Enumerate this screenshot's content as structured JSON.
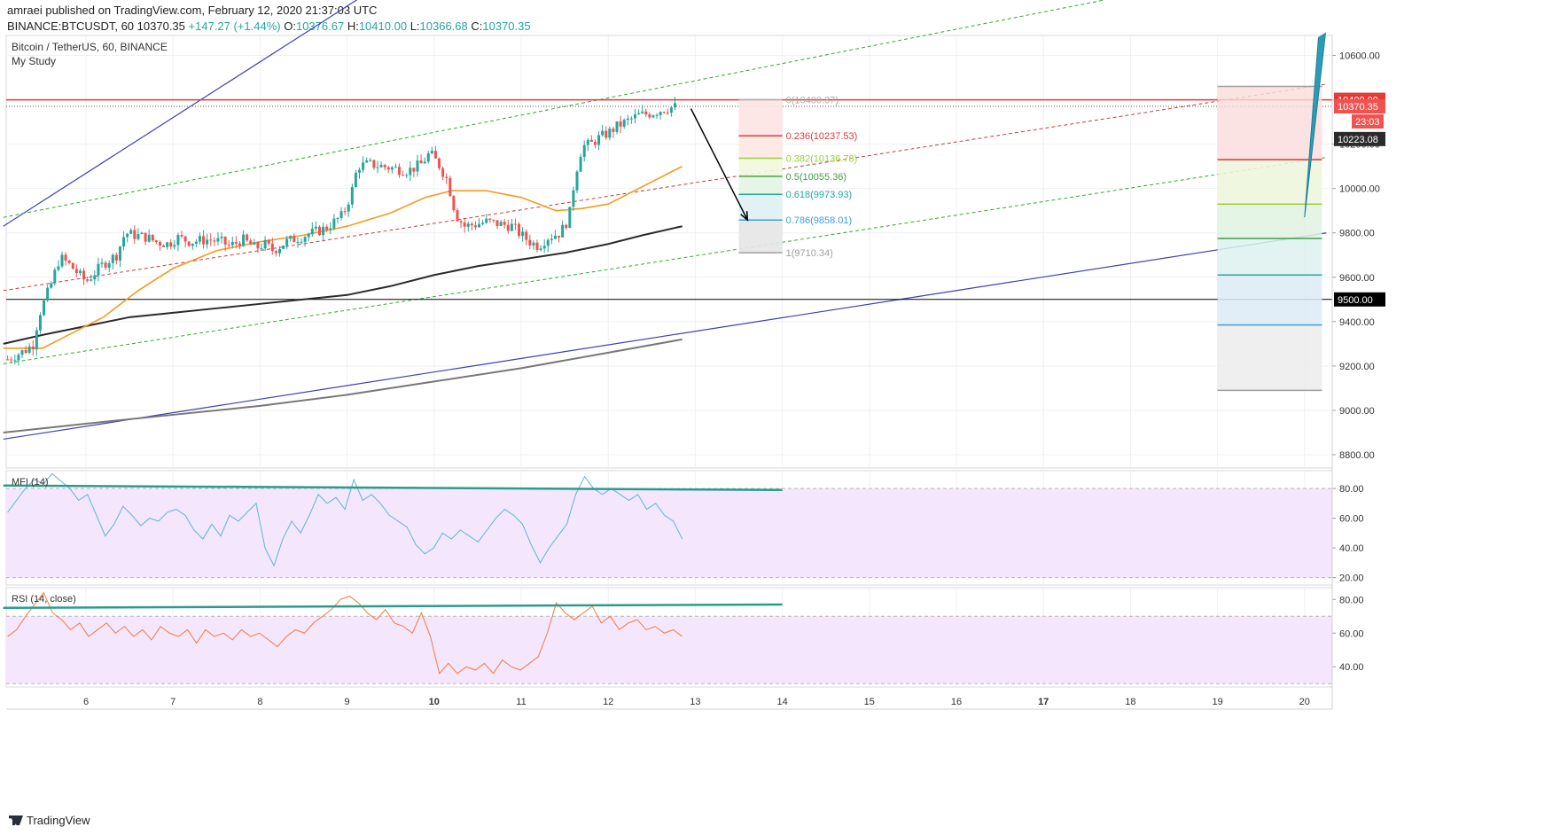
{
  "header": {
    "published": "amraei published on TradingView.com, February 12, 2020 21:37:03 UTC",
    "ticker": "BINANCE:BTCUSDT, 60",
    "last": "10370.35",
    "change": "+147.27 (+1.44%)",
    "o_label": "O:",
    "o": "10376.67",
    "h_label": "H:",
    "h": "10410.00",
    "l_label": "L:",
    "l": "10366.68",
    "c_label": "C:",
    "c": "10370.35"
  },
  "legend": {
    "symbol": "Bitcoin / TetherUS, 60, BINANCE",
    "study": "My Study"
  },
  "brand": "TradingView",
  "colors": {
    "up": "#26a69a",
    "down": "#ef5350",
    "ma_orange": "#f59b1e",
    "ma_black": "#2b2b2b",
    "ma_gray": "#787878",
    "channel_blue": "#3f3fb5",
    "dash_green": "#33a833",
    "dash_red": "#c83c3c",
    "h_red": "#e53935",
    "mfi": "#5bb6d8",
    "rsi": "#f27a3c",
    "trend_teal": "#2b9c8a",
    "band": "#f4e6fc"
  },
  "chart_data": [
    {
      "type": "candlestick",
      "title": "Bitcoin / TetherUS, 60, BINANCE",
      "subtitle": "My Study",
      "x_ticks": [
        "6",
        "7",
        "8",
        "9",
        "10",
        "11",
        "12",
        "13",
        "14",
        "15",
        "16",
        "17",
        "18",
        "19",
        "20"
      ],
      "y_ticks": [
        "10600.00",
        "10400.00",
        "10200.00",
        "10000.00",
        "9800.00",
        "9600.00",
        "9400.00",
        "9200.00",
        "9000.00",
        "8800.00"
      ],
      "ylim": [
        8740,
        10690
      ],
      "price_labels": [
        {
          "text": "10400.00",
          "value": 10400,
          "bg": "#e53935",
          "fg": "#ffffff"
        },
        {
          "text": "10370.35",
          "value": 10370.35,
          "bg": "#ef5350",
          "fg": "#ffffff"
        },
        {
          "text": "23:03",
          "value": 10300,
          "bg": "#ef5350",
          "fg": "#ffffff"
        },
        {
          "text": "10223.08",
          "value": 10223.08,
          "bg": "#2b2b2b",
          "fg": "#ffffff"
        },
        {
          "text": "9500.00",
          "value": 9500,
          "bg": "#000000",
          "fg": "#ffffff"
        }
      ],
      "close_path": [
        [
          5.1,
          9230
        ],
        [
          5.3,
          9270
        ],
        [
          5.4,
          9300
        ],
        [
          5.45,
          9420
        ],
        [
          5.5,
          9470
        ],
        [
          5.6,
          9570
        ],
        [
          5.7,
          9690
        ],
        [
          5.8,
          9660
        ],
        [
          5.9,
          9620
        ],
        [
          6.0,
          9580
        ],
        [
          6.1,
          9620
        ],
        [
          6.2,
          9660
        ],
        [
          6.35,
          9700
        ],
        [
          6.45,
          9800
        ],
        [
          6.55,
          9790
        ],
        [
          6.7,
          9780
        ],
        [
          6.8,
          9760
        ],
        [
          6.95,
          9750
        ],
        [
          7.05,
          9780
        ],
        [
          7.2,
          9760
        ],
        [
          7.4,
          9770
        ],
        [
          7.55,
          9760
        ],
        [
          7.65,
          9740
        ],
        [
          7.8,
          9770
        ],
        [
          7.95,
          9730
        ],
        [
          8.05,
          9750
        ],
        [
          8.15,
          9720
        ],
        [
          8.3,
          9760
        ],
        [
          8.45,
          9780
        ],
        [
          8.6,
          9800
        ],
        [
          8.75,
          9820
        ],
        [
          8.85,
          9850
        ],
        [
          8.95,
          9880
        ],
        [
          9.05,
          9980
        ],
        [
          9.12,
          10100
        ],
        [
          9.25,
          10110
        ],
        [
          9.4,
          10100
        ],
        [
          9.55,
          10090
        ],
        [
          9.7,
          10080
        ],
        [
          9.85,
          10110
        ],
        [
          9.95,
          10160
        ],
        [
          10.05,
          10110
        ],
        [
          10.15,
          10040
        ],
        [
          10.25,
          9880
        ],
        [
          10.35,
          9830
        ],
        [
          10.5,
          9840
        ],
        [
          10.6,
          9850
        ],
        [
          10.75,
          9840
        ],
        [
          10.9,
          9830
        ],
        [
          11.0,
          9790
        ],
        [
          11.1,
          9760
        ],
        [
          11.2,
          9740
        ],
        [
          11.3,
          9780
        ],
        [
          11.45,
          9800
        ],
        [
          11.55,
          9870
        ],
        [
          11.62,
          10060
        ],
        [
          11.7,
          10190
        ],
        [
          11.8,
          10200
        ],
        [
          11.9,
          10230
        ],
        [
          12.0,
          10250
        ],
        [
          12.1,
          10280
        ],
        [
          12.25,
          10310
        ],
        [
          12.35,
          10330
        ],
        [
          12.5,
          10340
        ],
        [
          12.65,
          10360
        ],
        [
          12.8,
          10370
        ]
      ],
      "fib_levels": [
        {
          "label": "0(10400.37)",
          "value": 10400.37,
          "color": "#aaaaaa"
        },
        {
          "label": "0.236(10237.53)",
          "value": 10237.53,
          "color": "#e53935"
        },
        {
          "label": "0.382(10136.78)",
          "value": 10136.78,
          "color": "#9ccc3c"
        },
        {
          "label": "0.5(10055.36)",
          "value": 10055.36,
          "color": "#43a047"
        },
        {
          "label": "0.618(9973.93)",
          "value": 9973.93,
          "color": "#26a69a"
        },
        {
          "label": "0.786(9858.01)",
          "value": 9858.01,
          "color": "#3d9fd8"
        },
        {
          "label": "1(9710.34)",
          "value": 9710.34,
          "color": "#9e9e9e"
        }
      ],
      "horizontal_lines": [
        10400,
        9500
      ],
      "ma_orange": [
        [
          5.05,
          9280
        ],
        [
          5.5,
          9280
        ],
        [
          5.8,
          9340
        ],
        [
          6.2,
          9420
        ],
        [
          6.6,
          9540
        ],
        [
          7.0,
          9640
        ],
        [
          7.5,
          9720
        ],
        [
          8.0,
          9760
        ],
        [
          8.5,
          9790
        ],
        [
          9.0,
          9830
        ],
        [
          9.5,
          9890
        ],
        [
          9.9,
          9960
        ],
        [
          10.2,
          9990
        ],
        [
          10.6,
          9990
        ],
        [
          11.0,
          9960
        ],
        [
          11.4,
          9900
        ],
        [
          11.7,
          9910
        ],
        [
          12.0,
          9930
        ],
        [
          12.4,
          10010
        ],
        [
          12.85,
          10100
        ]
      ],
      "ma_black": [
        [
          5.05,
          9300
        ],
        [
          5.5,
          9340
        ],
        [
          6.0,
          9380
        ],
        [
          6.5,
          9420
        ],
        [
          7.0,
          9440
        ],
        [
          7.5,
          9460
        ],
        [
          8.0,
          9480
        ],
        [
          8.5,
          9500
        ],
        [
          9.0,
          9520
        ],
        [
          9.5,
          9560
        ],
        [
          10.0,
          9610
        ],
        [
          10.5,
          9650
        ],
        [
          11.0,
          9680
        ],
        [
          11.5,
          9710
        ],
        [
          12.0,
          9750
        ],
        [
          12.4,
          9790
        ],
        [
          12.85,
          9830
        ]
      ],
      "ma_gray": [
        [
          5.05,
          8900
        ],
        [
          6.0,
          8940
        ],
        [
          7.0,
          8980
        ],
        [
          8.0,
          9020
        ],
        [
          9.0,
          9070
        ],
        [
          10.0,
          9130
        ],
        [
          11.0,
          9190
        ],
        [
          12.0,
          9260
        ],
        [
          12.85,
          9320
        ]
      ],
      "channel_blue": [
        {
          "from": [
            5.05,
            9830
          ],
          "to": [
            9.15,
            10860
          ]
        },
        {
          "from": [
            5.05,
            8870
          ],
          "to": [
            20.25,
            9800
          ]
        }
      ],
      "channel_green_dashed": [
        {
          "from": [
            5.05,
            9870
          ],
          "to": [
            17.7,
            10850
          ]
        },
        {
          "from": [
            5.05,
            9210
          ],
          "to": [
            20.25,
            10140
          ]
        }
      ],
      "channel_red_dashed": {
        "from": [
          5.05,
          9540
        ],
        "to": [
          20.25,
          10470
        ]
      },
      "arrow": {
        "from": [
          12.95,
          10360
        ],
        "to": [
          13.6,
          9858
        ]
      },
      "position_box": {
        "x": [
          19.0,
          20.2
        ],
        "top": 10460,
        "entry": 10130,
        "bottom": 9090,
        "steps": [
          9930,
          9775,
          9610,
          9385
        ]
      },
      "projection_line": {
        "from": [
          20.0,
          9870
        ],
        "to": [
          20.2,
          10700
        ]
      }
    },
    {
      "type": "line",
      "title": "MFI (14)",
      "y_ticks": [
        "80.00",
        "60.00",
        "40.00",
        "20.00"
      ],
      "ylim": [
        15,
        92
      ],
      "band": [
        20,
        80
      ],
      "trendline": {
        "from": [
          5.05,
          82
        ],
        "to": [
          14.0,
          79
        ]
      },
      "values": [
        64,
        72,
        80,
        86,
        83,
        90,
        85,
        80,
        72,
        76,
        62,
        48,
        56,
        68,
        62,
        55,
        60,
        58,
        64,
        66,
        62,
        52,
        46,
        56,
        48,
        62,
        58,
        64,
        70,
        40,
        28,
        46,
        58,
        50,
        62,
        76,
        70,
        74,
        66,
        86,
        72,
        76,
        70,
        62,
        58,
        54,
        42,
        36,
        40,
        50,
        46,
        52,
        48,
        44,
        52,
        60,
        66,
        62,
        56,
        42,
        30,
        40,
        48,
        56,
        76,
        88,
        80,
        76,
        80,
        76,
        72,
        76,
        66,
        70,
        62,
        58,
        46
      ]
    },
    {
      "type": "line",
      "title": "RSI (14, close)",
      "y_ticks": [
        "80.00",
        "60.00",
        "40.00"
      ],
      "ylim": [
        28,
        87
      ],
      "band": [
        30,
        70
      ],
      "trendline": {
        "from": [
          5.05,
          75
        ],
        "to": [
          14.0,
          77
        ]
      },
      "values": [
        58,
        62,
        70,
        77,
        84,
        72,
        68,
        62,
        66,
        58,
        62,
        66,
        60,
        64,
        58,
        62,
        56,
        64,
        60,
        58,
        62,
        54,
        62,
        58,
        60,
        56,
        62,
        58,
        60,
        56,
        52,
        58,
        62,
        60,
        66,
        70,
        74,
        80,
        82,
        78,
        72,
        68,
        74,
        66,
        64,
        60,
        72,
        58,
        36,
        42,
        36,
        40,
        38,
        42,
        36,
        44,
        40,
        38,
        42,
        46,
        60,
        78,
        72,
        68,
        72,
        76,
        66,
        70,
        62,
        66,
        68,
        62,
        64,
        60,
        62,
        58
      ]
    }
  ]
}
